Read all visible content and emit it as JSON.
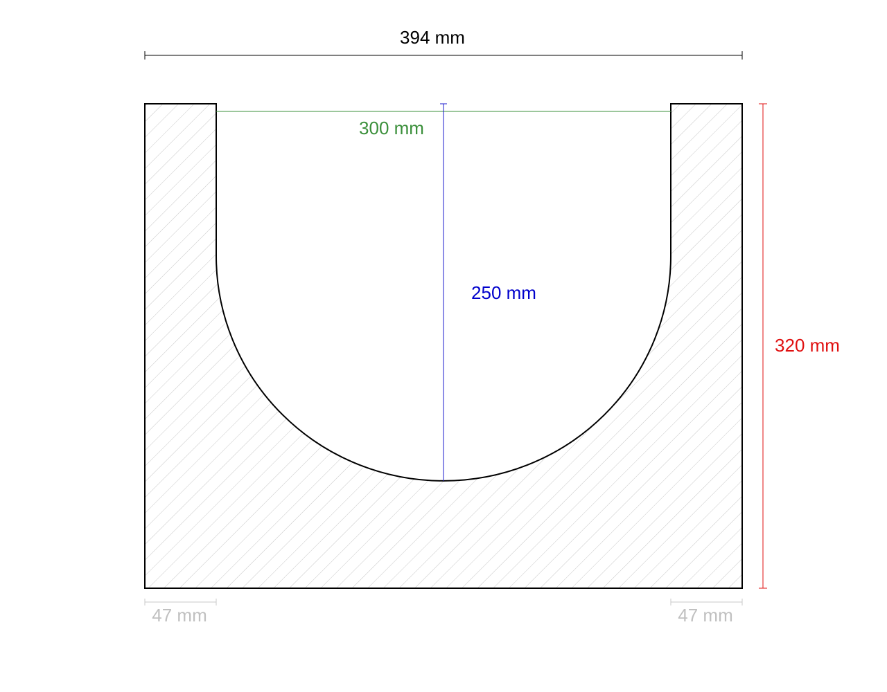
{
  "dimensions": {
    "overall_width": "394 mm",
    "opening_width": "300 mm",
    "channel_depth": "250 mm",
    "overall_height": "320 mm",
    "left_wall": "47 mm",
    "right_wall": "47 mm"
  }
}
